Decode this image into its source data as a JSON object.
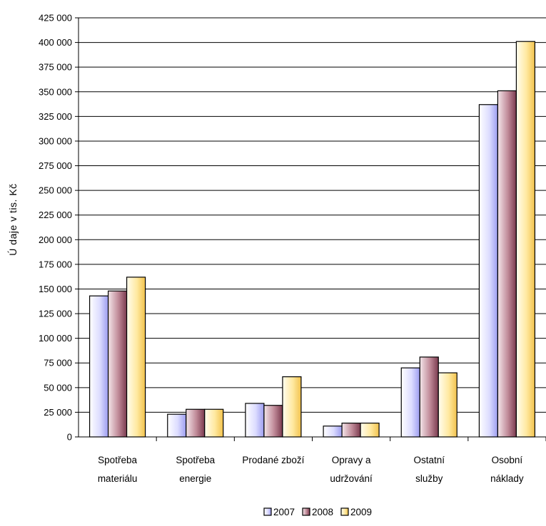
{
  "chart_data": {
    "type": "bar",
    "ylabel": "Ú daje v tis. Kč",
    "ylim": [
      0,
      425000
    ],
    "ytick_step": 25000,
    "yticks": [
      "0",
      "25 000",
      "50 000",
      "75 000",
      "100 000",
      "125 000",
      "150 000",
      "175 000",
      "200 000",
      "225 000",
      "250 000",
      "275 000",
      "300 000",
      "325 000",
      "350 000",
      "375 000",
      "400 000",
      "425 000"
    ],
    "grid": true,
    "legend_position": "bottom",
    "categories": [
      [
        "Spotřeba",
        "materiálu"
      ],
      [
        "Spotřeba",
        "energie"
      ],
      [
        "Prodané zboží"
      ],
      [
        "Opravy a",
        "udržování"
      ],
      [
        "Ostatní",
        "služby"
      ],
      [
        "Osobní",
        "náklady"
      ]
    ],
    "series": [
      {
        "name": "2007",
        "color": "#e6e6ff",
        "values": [
          143000,
          23000,
          34000,
          11000,
          70000,
          337000
        ]
      },
      {
        "name": "2008",
        "color": "#c9a0ad",
        "values": [
          148000,
          28000,
          32000,
          14000,
          81000,
          351000
        ]
      },
      {
        "name": "2009",
        "color": "#fff1b8",
        "values": [
          162000,
          28000,
          61000,
          14000,
          65000,
          401000
        ]
      }
    ]
  }
}
